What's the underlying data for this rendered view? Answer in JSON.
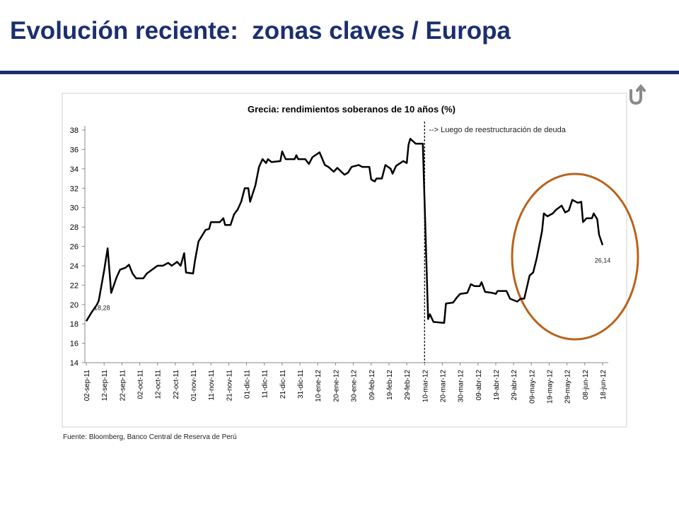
{
  "header": {
    "title": "Evolución reciente:  zonas claves / Europa"
  },
  "source": "Fuente: Bloomberg, Banco Central de Reserva de Perú",
  "chart_data": {
    "type": "line",
    "title": "Grecia: rendimientos soberanos de 10 años (%)",
    "color": "#000000",
    "x": [
      "2011-09-02",
      "2011-09-05",
      "2011-09-08",
      "2011-09-09",
      "2011-09-12",
      "2011-09-14",
      "2011-09-16",
      "2011-09-19",
      "2011-09-21",
      "2011-09-24",
      "2011-09-26",
      "2011-09-28",
      "2011-09-30",
      "2011-10-04",
      "2011-10-06",
      "2011-10-09",
      "2011-10-12",
      "2011-10-15",
      "2011-10-18",
      "2011-10-20",
      "2011-10-23",
      "2011-10-25",
      "2011-10-27",
      "2011-10-28",
      "2011-11-01",
      "2011-11-02",
      "2011-11-04",
      "2011-11-08",
      "2011-11-10",
      "2011-11-11",
      "2011-11-16",
      "2011-11-18",
      "2011-11-19",
      "2011-11-22",
      "2011-11-24",
      "2011-11-26",
      "2011-11-28",
      "2011-11-30",
      "2011-12-02",
      "2011-12-03",
      "2011-12-06",
      "2011-12-08",
      "2011-12-10",
      "2011-12-12",
      "2011-12-13",
      "2011-12-15",
      "2011-12-20",
      "2011-12-21",
      "2011-12-23",
      "2011-12-28",
      "2011-12-29",
      "2011-12-30",
      "2012-01-03",
      "2012-01-05",
      "2012-01-07",
      "2012-01-11",
      "2012-01-14",
      "2012-01-16",
      "2012-01-19",
      "2012-01-21",
      "2012-01-25",
      "2012-01-27",
      "2012-01-29",
      "2012-02-02",
      "2012-02-04",
      "2012-02-08",
      "2012-02-09",
      "2012-02-11",
      "2012-02-12",
      "2012-02-15",
      "2012-02-17",
      "2012-02-20",
      "2012-02-21",
      "2012-02-23",
      "2012-02-27",
      "2012-02-29",
      "2012-03-01",
      "2012-03-02",
      "2012-03-05",
      "2012-03-09",
      "2012-03-12",
      "2012-03-13",
      "2012-03-15",
      "2012-03-21",
      "2012-03-22",
      "2012-03-26",
      "2012-03-28",
      "2012-03-30",
      "2012-04-03",
      "2012-04-05",
      "2012-04-07",
      "2012-04-10",
      "2012-04-11",
      "2012-04-13",
      "2012-04-17",
      "2012-04-19",
      "2012-04-20",
      "2012-04-25",
      "2012-04-27",
      "2012-05-01",
      "2012-05-03",
      "2012-05-05",
      "2012-05-08",
      "2012-05-10",
      "2012-05-12",
      "2012-05-15",
      "2012-05-16",
      "2012-05-18",
      "2012-05-21",
      "2012-05-23",
      "2012-05-26",
      "2012-05-28",
      "2012-05-30",
      "2012-06-01",
      "2012-06-04",
      "2012-06-06",
      "2012-06-07",
      "2012-06-09",
      "2012-06-12",
      "2012-06-13",
      "2012-06-15",
      "2012-06-16",
      "2012-06-18"
    ],
    "values": [
      18.28,
      19.2,
      20.0,
      20.4,
      23.5,
      25.8,
      21.2,
      22.8,
      23.6,
      23.8,
      24.1,
      23.2,
      22.7,
      22.7,
      23.2,
      23.6,
      24.0,
      24.0,
      24.3,
      24.0,
      24.4,
      24.0,
      25.3,
      23.3,
      23.2,
      24.5,
      26.5,
      27.7,
      27.8,
      28.5,
      28.5,
      28.9,
      28.2,
      28.2,
      29.3,
      29.8,
      30.6,
      32.0,
      32.0,
      30.6,
      32.3,
      34.2,
      35.0,
      34.6,
      35.0,
      34.7,
      34.8,
      35.8,
      35.0,
      35.0,
      35.4,
      35.0,
      35.0,
      34.5,
      35.2,
      35.7,
      34.4,
      34.2,
      33.7,
      34.1,
      33.4,
      33.6,
      34.2,
      34.4,
      34.2,
      34.2,
      32.9,
      32.7,
      33.0,
      33.0,
      34.4,
      34.0,
      33.5,
      34.3,
      34.8,
      34.6,
      36.5,
      37.1,
      36.6,
      36.6,
      18.5,
      19.0,
      18.2,
      18.1,
      20.1,
      20.2,
      20.7,
      21.1,
      21.2,
      22.1,
      21.9,
      21.9,
      22.3,
      21.3,
      21.2,
      21.1,
      21.4,
      21.4,
      20.6,
      20.3,
      20.6,
      20.6,
      23.0,
      23.3,
      24.8,
      27.6,
      29.4,
      29.1,
      29.4,
      29.8,
      30.2,
      29.5,
      29.7,
      30.8,
      30.5,
      30.6,
      28.5,
      28.9,
      28.9,
      29.4,
      28.8,
      27.2,
      26.14
    ],
    "xlim": [
      "2011-09-02",
      "2012-06-18"
    ],
    "xticks": [
      {
        "value": "2011-09-02",
        "label": "02-sep-11"
      },
      {
        "value": "2011-09-12",
        "label": "12-sep-11"
      },
      {
        "value": "2011-09-22",
        "label": "22-sep-11"
      },
      {
        "value": "2011-10-02",
        "label": "02-oct-11"
      },
      {
        "value": "2011-10-12",
        "label": "12-oct-11"
      },
      {
        "value": "2011-10-22",
        "label": "22-oct-11"
      },
      {
        "value": "2011-11-01",
        "label": "01-nov-11"
      },
      {
        "value": "2011-11-11",
        "label": "11-nov-11"
      },
      {
        "value": "2011-11-21",
        "label": "21-nov-11"
      },
      {
        "value": "2011-12-01",
        "label": "01-dic-11"
      },
      {
        "value": "2011-12-11",
        "label": "11-dic-11"
      },
      {
        "value": "2011-12-21",
        "label": "21-dic-11"
      },
      {
        "value": "2011-12-31",
        "label": "31-dic-11"
      },
      {
        "value": "2012-01-10",
        "label": "10-ene-12"
      },
      {
        "value": "2012-01-20",
        "label": "20-ene-12"
      },
      {
        "value": "2012-01-30",
        "label": "30-ene-12"
      },
      {
        "value": "2012-02-09",
        "label": "09-feb-12"
      },
      {
        "value": "2012-02-19",
        "label": "19-feb-12"
      },
      {
        "value": "2012-02-29",
        "label": "29-feb-12"
      },
      {
        "value": "2012-03-10",
        "label": "10-mar-12"
      },
      {
        "value": "2012-03-20",
        "label": "20-mar-12"
      },
      {
        "value": "2012-03-30",
        "label": "30-mar-12"
      },
      {
        "value": "2012-04-09",
        "label": "09-abr-12"
      },
      {
        "value": "2012-04-19",
        "label": "19-abr-12"
      },
      {
        "value": "2012-04-29",
        "label": "29-abr-12"
      },
      {
        "value": "2012-05-09",
        "label": "09-may-12"
      },
      {
        "value": "2012-05-19",
        "label": "19-may-12"
      },
      {
        "value": "2012-05-29",
        "label": "29-may-12"
      },
      {
        "value": "2012-06-08",
        "label": "08-jun-12"
      },
      {
        "value": "2012-06-18",
        "label": "18-jun-12"
      }
    ],
    "ylim": [
      14,
      38
    ],
    "yticks": [
      14,
      16,
      18,
      20,
      22,
      24,
      26,
      28,
      30,
      32,
      34,
      36,
      38
    ],
    "grid": false,
    "point_labels": [
      {
        "x": "2011-09-02",
        "y": 18.28,
        "label": "18,28"
      },
      {
        "x": "2012-06-18",
        "y": 26.14,
        "label": "26,14"
      }
    ],
    "event": {
      "x": "2012-03-10",
      "label": "--> Luego de reestructuración de deuda"
    }
  }
}
